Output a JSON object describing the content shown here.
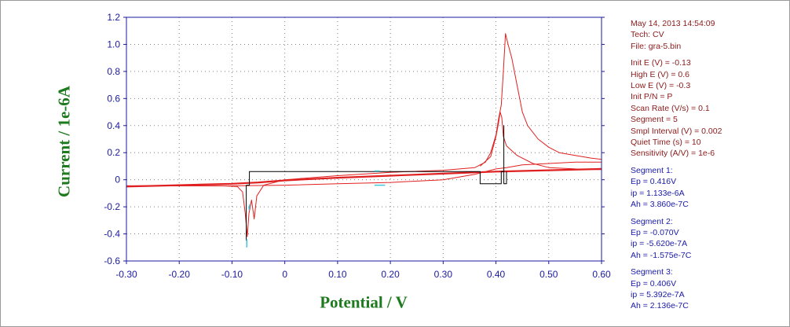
{
  "colors": {
    "axis": "#1a1aa0",
    "trace": "#e02020",
    "baseline": "#000000",
    "marker": "#40c8d8",
    "title": "#1e7a1e",
    "info": "#8b1a1a",
    "segment": "#1a1aa8"
  },
  "chart_data": {
    "type": "line",
    "xlabel": "Potential / V",
    "ylabel": "Current / 1e-6A",
    "xlim": [
      -0.3,
      0.6
    ],
    "ylim": [
      -0.6,
      1.2
    ],
    "x_ticks": [
      "-0.30",
      "-0.20",
      "-0.10",
      "0",
      "0.10",
      "0.20",
      "0.30",
      "0.40",
      "0.50",
      "0.60"
    ],
    "y_ticks": [
      "-0.6",
      "-0.4",
      "-0.2",
      "0",
      "0.2",
      "0.4",
      "0.6",
      "0.8",
      "1.0",
      "1.2"
    ],
    "x_axis_reversed": false,
    "grid": true,
    "series": [
      {
        "color": "#e02020",
        "points": [
          [
            -0.3,
            -0.045
          ],
          [
            -0.2,
            -0.045
          ],
          [
            -0.12,
            -0.045
          ],
          [
            -0.09,
            -0.05
          ],
          [
            -0.08,
            -0.09
          ],
          [
            -0.075,
            -0.25
          ],
          [
            -0.071,
            -0.42
          ],
          [
            -0.068,
            -0.25
          ],
          [
            -0.063,
            -0.15
          ],
          [
            -0.058,
            -0.29
          ],
          [
            -0.053,
            -0.12
          ],
          [
            -0.04,
            -0.04
          ],
          [
            0.0,
            0.0
          ],
          [
            0.1,
            0.03
          ],
          [
            0.2,
            0.055
          ],
          [
            0.3,
            0.07
          ],
          [
            0.36,
            0.09
          ],
          [
            0.38,
            0.13
          ],
          [
            0.39,
            0.2
          ],
          [
            0.4,
            0.33
          ],
          [
            0.405,
            0.45
          ],
          [
            0.41,
            0.55
          ],
          [
            0.414,
            0.8
          ],
          [
            0.418,
            1.08
          ],
          [
            0.423,
            1.0
          ],
          [
            0.43,
            0.9
          ],
          [
            0.44,
            0.7
          ],
          [
            0.45,
            0.5
          ],
          [
            0.46,
            0.4
          ],
          [
            0.48,
            0.3
          ],
          [
            0.5,
            0.24
          ],
          [
            0.52,
            0.2
          ],
          [
            0.55,
            0.18
          ],
          [
            0.58,
            0.16
          ],
          [
            0.6,
            0.15
          ]
        ]
      },
      {
        "color": "#e02020",
        "points": [
          [
            0.6,
            0.13
          ],
          [
            0.55,
            0.13
          ],
          [
            0.5,
            0.12
          ],
          [
            0.45,
            0.11
          ],
          [
            0.42,
            0.09
          ],
          [
            0.4,
            0.08
          ],
          [
            0.36,
            0.04
          ],
          [
            0.3,
            0.0
          ],
          [
            0.2,
            -0.02
          ],
          [
            0.1,
            -0.03
          ],
          [
            0.0,
            -0.04
          ],
          [
            -0.1,
            -0.045
          ],
          [
            -0.2,
            -0.045
          ],
          [
            -0.3,
            -0.045
          ]
        ]
      },
      {
        "color": "#e02020",
        "points": [
          [
            0.37,
            0.1
          ],
          [
            0.39,
            0.17
          ],
          [
            0.4,
            0.32
          ],
          [
            0.405,
            0.42
          ],
          [
            0.408,
            0.5
          ],
          [
            0.411,
            0.46
          ],
          [
            0.414,
            0.32
          ],
          [
            0.42,
            0.25
          ],
          [
            0.44,
            0.18
          ],
          [
            0.47,
            0.12
          ],
          [
            0.5,
            0.09
          ],
          [
            0.55,
            0.08
          ],
          [
            0.6,
            0.075
          ]
        ]
      },
      {
        "color": "#e02020",
        "points": [
          [
            -0.3,
            -0.05
          ],
          [
            -0.2,
            -0.04
          ],
          [
            -0.1,
            -0.03
          ],
          [
            -0.05,
            -0.02
          ],
          [
            0.0,
            -0.005
          ],
          [
            0.05,
            0.005
          ],
          [
            0.1,
            0.015
          ],
          [
            0.2,
            0.03
          ],
          [
            0.3,
            0.045
          ],
          [
            0.4,
            0.06
          ],
          [
            0.5,
            0.07
          ],
          [
            0.6,
            0.08
          ]
        ]
      },
      {
        "color": "#000000",
        "points": [
          [
            -0.073,
            -0.45
          ],
          [
            -0.073,
            -0.04
          ],
          [
            -0.067,
            -0.04
          ],
          [
            -0.067,
            0.06
          ],
          [
            0.37,
            0.06
          ],
          [
            0.37,
            -0.03
          ],
          [
            0.41,
            -0.03
          ],
          [
            0.41,
            0.06
          ],
          [
            0.415,
            0.06
          ],
          [
            0.415,
            0.4
          ],
          [
            0.415,
            -0.03
          ],
          [
            0.42,
            -0.03
          ],
          [
            0.42,
            0.06
          ]
        ]
      }
    ],
    "markers": [
      {
        "color": "#40c8d8",
        "points": [
          [
            -0.072,
            -0.5
          ],
          [
            -0.072,
            -0.44
          ]
        ]
      },
      {
        "color": "#40c8d8",
        "points": [
          [
            -0.068,
            -0.22
          ],
          [
            -0.066,
            -0.18
          ]
        ]
      },
      {
        "color": "#40c8d8",
        "points": [
          [
            0.17,
            -0.04
          ],
          [
            0.19,
            -0.04
          ]
        ]
      },
      {
        "color": "#40c8d8",
        "points": [
          [
            0.17,
            0.065
          ],
          [
            0.18,
            0.065
          ]
        ]
      }
    ]
  },
  "info": {
    "date_line": "May 14, 2013   14:54:09",
    "tech": "Tech: CV",
    "file": "File: gra-5.bin",
    "params": [
      "Init E (V) = -0.13",
      "High E (V) = 0.6",
      "Low E (V) = -0.3",
      "Init P/N = P",
      "Scan Rate (V/s) = 0.1",
      "Segment = 5",
      "Smpl Interval (V) = 0.002",
      "Quiet Time (s) = 10",
      "Sensitivity (A/V) = 1e-6"
    ],
    "segments": [
      {
        "title": "Segment 1:",
        "ep": "Ep = 0.416V",
        "ip": "ip = 1.133e-6A",
        "ah": "Ah = 3.860e-7C"
      },
      {
        "title": "Segment 2:",
        "ep": "Ep = -0.070V",
        "ip": "ip = -5.620e-7A",
        "ah": "Ah = -1.575e-7C"
      },
      {
        "title": "Segment 3:",
        "ep": "Ep = 0.406V",
        "ip": "ip = 5.392e-7A",
        "ah": "Ah = 2.136e-7C"
      }
    ]
  }
}
